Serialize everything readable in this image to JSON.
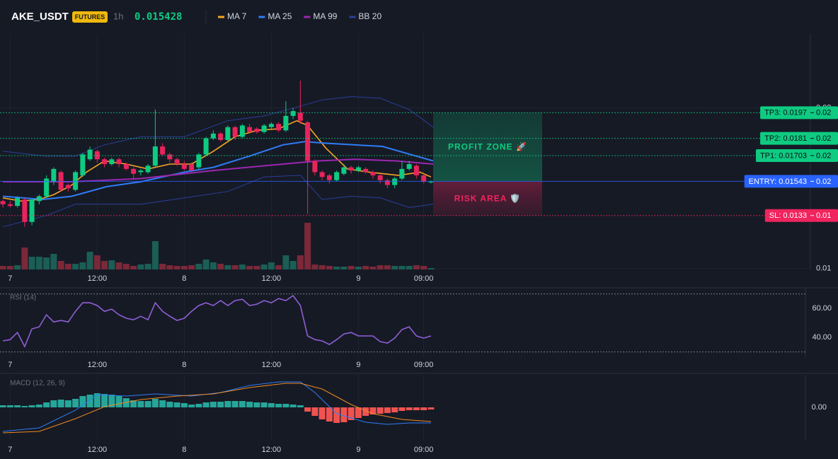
{
  "chart_data": {
    "type": "candlestick",
    "symbol": "AKE_USDT",
    "badge": "FUTURES",
    "interval": "1h",
    "last_price": 0.015428,
    "open": [
      0.0142,
      0.014,
      0.0139,
      0.0143,
      0.0129,
      0.0142,
      0.0145,
      0.0154,
      0.016,
      0.0152,
      0.0149,
      0.0158,
      0.0168,
      0.0173,
      0.0168,
      0.0165,
      0.0168,
      0.0165,
      0.0162,
      0.016,
      0.016,
      0.0164,
      0.0176,
      0.0171,
      0.0168,
      0.0165,
      0.0165,
      0.0163,
      0.0171,
      0.0181,
      0.0184,
      0.018,
      0.0188,
      0.0182,
      0.0188,
      0.0187,
      0.0185,
      0.0188,
      0.019,
      0.0186,
      0.0195,
      0.0197,
      0.0191,
      0.0167,
      0.016,
      0.0158,
      0.0155,
      0.0159,
      0.0163,
      0.0161,
      0.0162,
      0.016,
      0.0158,
      0.0155,
      0.0152,
      0.0156,
      0.0162,
      0.0164,
      0.0158,
      0.0154
    ],
    "high": [
      0.0143,
      0.0142,
      0.0145,
      0.0144,
      0.0143,
      0.0146,
      0.0158,
      0.0163,
      0.0161,
      0.0153,
      0.0161,
      0.0172,
      0.0176,
      0.0174,
      0.0169,
      0.0169,
      0.0169,
      0.0166,
      0.0163,
      0.0162,
      0.0165,
      0.0199,
      0.0178,
      0.0172,
      0.0169,
      0.0167,
      0.0166,
      0.0172,
      0.0182,
      0.0186,
      0.0185,
      0.0189,
      0.0189,
      0.019,
      0.019,
      0.0188,
      0.019,
      0.0191,
      0.0191,
      0.0204,
      0.02,
      0.0217,
      0.0192,
      0.0168,
      0.0161,
      0.0159,
      0.0161,
      0.0165,
      0.0164,
      0.0164,
      0.0163,
      0.0161,
      0.0159,
      0.0156,
      0.0157,
      0.0167,
      0.0167,
      0.0165,
      0.0159,
      0.0155
    ],
    "low": [
      0.0138,
      0.0138,
      0.0138,
      0.0126,
      0.0127,
      0.014,
      0.0144,
      0.0152,
      0.0148,
      0.0148,
      0.0148,
      0.0157,
      0.0167,
      0.0166,
      0.0163,
      0.0164,
      0.0163,
      0.0161,
      0.0156,
      0.0158,
      0.0159,
      0.0163,
      0.017,
      0.0166,
      0.0164,
      0.0161,
      0.016,
      0.0162,
      0.017,
      0.018,
      0.0179,
      0.0179,
      0.018,
      0.0181,
      0.0184,
      0.0184,
      0.0184,
      0.0187,
      0.0185,
      0.0185,
      0.0193,
      0.019,
      0.0134,
      0.0158,
      0.0155,
      0.0153,
      0.0154,
      0.0158,
      0.0159,
      0.016,
      0.0159,
      0.0156,
      0.0153,
      0.015,
      0.015,
      0.0155,
      0.0161,
      0.0156,
      0.0153,
      0.0153
    ],
    "close": [
      0.014,
      0.0139,
      0.0144,
      0.0129,
      0.0143,
      0.0145,
      0.0156,
      0.0162,
      0.0149,
      0.015,
      0.016,
      0.0171,
      0.0174,
      0.0168,
      0.0165,
      0.0168,
      0.0165,
      0.0162,
      0.0159,
      0.0161,
      0.0164,
      0.0176,
      0.0171,
      0.0168,
      0.0165,
      0.0162,
      0.0161,
      0.0171,
      0.0181,
      0.0184,
      0.018,
      0.0188,
      0.0182,
      0.0189,
      0.0185,
      0.0185,
      0.0189,
      0.019,
      0.0186,
      0.0195,
      0.0198,
      0.0192,
      0.0167,
      0.016,
      0.0157,
      0.0155,
      0.016,
      0.0163,
      0.0161,
      0.0163,
      0.016,
      0.0158,
      0.0155,
      0.0152,
      0.0156,
      0.0162,
      0.0165,
      0.0158,
      0.0154,
      0.0154
    ],
    "volume": [
      5,
      5,
      6,
      31,
      18,
      18,
      17,
      22,
      12,
      8,
      8,
      10,
      25,
      20,
      12,
      13,
      10,
      8,
      5,
      7,
      8,
      40,
      8,
      6,
      5,
      5,
      6,
      8,
      14,
      10,
      8,
      6,
      6,
      7,
      5,
      5,
      7,
      10,
      6,
      20,
      12,
      20,
      66,
      7,
      6,
      5,
      4,
      4,
      5,
      4,
      5,
      4,
      6,
      6,
      5,
      5,
      5,
      6,
      5,
      2
    ],
    "up_color": "#0ecb81",
    "down_color": "#e8245c",
    "xlim": [
      -0.4,
      111.3
    ],
    "xticks": [
      {
        "value": 1,
        "label": "7"
      },
      {
        "value": 13,
        "label": "12:00"
      },
      {
        "value": 25,
        "label": "8"
      },
      {
        "value": 37,
        "label": "12:00"
      },
      {
        "value": 49,
        "label": "9"
      },
      {
        "value": 58,
        "label": "09:00"
      }
    ],
    "ylim": [
      0.0099,
      0.0246
    ],
    "yticks": [
      0.01,
      0.02
    ],
    "overlays": [
      {
        "name": "MA 7",
        "color": "#f5a623",
        "x": [
          0,
          2.5,
          5,
          7,
          9.5,
          11.5,
          14,
          17,
          20,
          23,
          26,
          29,
          32,
          35,
          38,
          40.5,
          42,
          44.5,
          47.5,
          50.5,
          54.5,
          57.5,
          59
        ],
        "values": [
          0.0144,
          0.0142,
          0.0143,
          0.0146,
          0.0152,
          0.016,
          0.0167,
          0.0165,
          0.0162,
          0.0165,
          0.0165,
          0.0173,
          0.0182,
          0.0186,
          0.0187,
          0.0192,
          0.0189,
          0.0175,
          0.0162,
          0.016,
          0.0158,
          0.016,
          0.0157
        ]
      },
      {
        "name": "MA 25",
        "color": "#2f7cf6",
        "x": [
          0,
          5.5,
          9.5,
          14.3,
          19,
          25,
          29,
          34,
          38.6,
          41.6,
          44.5,
          48.4,
          52.3,
          56.2,
          59.3
        ],
        "values": [
          0.0145,
          0.0143,
          0.0145,
          0.0151,
          0.0154,
          0.016,
          0.0163,
          0.017,
          0.0177,
          0.0179,
          0.0178,
          0.0177,
          0.0176,
          0.0171,
          0.0167
        ]
      },
      {
        "name": "MA 99",
        "color": "#9c27b0",
        "x": [
          0,
          9.5,
          19,
          29,
          38.6,
          43.5,
          48.4,
          54.2,
          59.3
        ],
        "values": [
          0.0154,
          0.0154,
          0.0156,
          0.0161,
          0.0165,
          0.0167,
          0.0168,
          0.0167,
          0.0165
        ]
      }
    ],
    "bands": [
      {
        "name": "BB 20",
        "color": "#2a3f9a",
        "x": [
          0,
          6,
          10,
          14,
          19,
          25,
          31,
          36,
          41,
          44,
          48,
          52,
          56,
          59.3
        ],
        "upper": [
          0.0173,
          0.017,
          0.017,
          0.0177,
          0.0182,
          0.0182,
          0.0192,
          0.0195,
          0.0201,
          0.0205,
          0.0207,
          0.0206,
          0.0199,
          0.0188
        ],
        "lower": [
          0.0126,
          0.0133,
          0.014,
          0.014,
          0.014,
          0.0144,
          0.0148,
          0.0157,
          0.0158,
          0.0143,
          0.0145,
          0.0144,
          0.0138,
          0.014
        ]
      }
    ],
    "levels": [
      {
        "label": "TP3: 0.0197",
        "value": 0.0197,
        "axis_label": "0.02",
        "color": "#0ecb81",
        "style": "dotted"
      },
      {
        "label": "TP2: 0.0181",
        "value": 0.0181,
        "axis_label": "0.02",
        "color": "#0ecb81",
        "style": "dotted"
      },
      {
        "label": "TP1: 0.01703",
        "value": 0.01703,
        "axis_label": "0.02",
        "color": "#0ecb81",
        "style": "dotted"
      },
      {
        "label": "ENTRY: 0.01543",
        "value": 0.01543,
        "axis_label": "0.02",
        "color": "#2962ff",
        "style": "solid"
      },
      {
        "label": "SL: 0.0133",
        "value": 0.0133,
        "axis_label": "0.01",
        "color": "#f0245e",
        "style": "dotted"
      }
    ],
    "zones": [
      {
        "label": "PROFIT ZONE 🚀",
        "top": 0.0197,
        "bottom": 0.01543,
        "color": "#0ecb81"
      },
      {
        "label": "RISK AREA 🛡️",
        "top": 0.01543,
        "bottom": 0.0133,
        "color": "#f0245e"
      }
    ],
    "rsi": {
      "title": "RSI (14)",
      "color": "#8e5fd6",
      "ylim": [
        25.9,
        73.7
      ],
      "yticks": [
        {
          "value": 60,
          "label": "60.00"
        },
        {
          "value": 40,
          "label": "40.00"
        }
      ],
      "bands": [
        70,
        30
      ],
      "values": [
        37.6,
        38.5,
        43.4,
        33.7,
        45.9,
        47.3,
        55.6,
        50.7,
        51.7,
        50.7,
        58.0,
        63.9,
        63.9,
        62.0,
        58.0,
        59.5,
        55.6,
        53.2,
        52.2,
        54.6,
        52.2,
        63.9,
        58.0,
        54.6,
        51.7,
        53.2,
        58.0,
        62.0,
        63.9,
        62.0,
        65.4,
        62.0,
        65.4,
        66.3,
        62.0,
        62.9,
        65.4,
        63.9,
        66.8,
        65.4,
        68.8,
        62.0,
        41.0,
        38.5,
        37.6,
        35.1,
        38.5,
        42.4,
        43.4,
        41.0,
        41.0,
        41.0,
        37.1,
        36.1,
        39.5,
        45.4,
        47.3,
        41.0,
        39.5,
        41.0
      ]
    },
    "macd": {
      "title": "MACD (12, 26, 9)",
      "ylim": [
        -0.00046,
        0.00046
      ],
      "yticks": [
        {
          "value": 0,
          "label": "0.00"
        }
      ],
      "up_color": "#26a69a",
      "down_color": "#ef5350",
      "histogram": [
        3e-05,
        3e-05,
        3e-05,
        2e-05,
        3e-05,
        4e-05,
        7e-05,
        0.0001,
        0.00011,
        0.0001,
        0.00012,
        0.00016,
        0.00018,
        0.0002,
        0.00019,
        0.00018,
        0.00016,
        0.00013,
        0.0001,
        9e-05,
        9e-05,
        0.00012,
        0.0001,
        8e-05,
        7e-05,
        6e-05,
        4e-05,
        5e-05,
        7e-05,
        8e-05,
        8e-05,
        9e-05,
        9e-05,
        9e-05,
        8e-05,
        7e-05,
        7e-05,
        6e-05,
        5e-05,
        5e-05,
        4e-05,
        3e-05,
        -6e-05,
        -0.00012,
        -0.00017,
        -0.0002,
        -0.00022,
        -0.00021,
        -0.00018,
        -0.00015,
        -0.00012,
        -0.0001,
        -9e-05,
        -8e-05,
        -7e-05,
        -5e-05,
        -4e-05,
        -4e-05,
        -4e-05,
        -3e-05
      ],
      "lines": [
        {
          "color": "#2f7cf6",
          "x": [
            0,
            5,
            10,
            13,
            17,
            21,
            26,
            30,
            34,
            38,
            41,
            43,
            46,
            50,
            53,
            56,
            59
          ],
          "values": [
            -0.00034,
            -0.00029,
            -4e-05,
            0.00018,
            0.00016,
            0.00019,
            0.00016,
            0.00021,
            0.00031,
            0.00036,
            0.00036,
            0.00021,
            -9e-05,
            -0.00021,
            -0.00024,
            -0.00022,
            -0.00022
          ]
        },
        {
          "color": "#f08a24",
          "x": [
            0,
            5,
            10,
            14,
            19,
            24,
            29,
            34,
            39,
            41,
            44,
            48,
            51,
            55,
            59
          ],
          "values": [
            -0.00036,
            -0.00034,
            -0.00016,
            1e-05,
            0.00011,
            0.00016,
            0.00019,
            0.00028,
            0.00034,
            0.00034,
            0.00026,
            4e-05,
            -9e-05,
            -0.00017,
            -0.0002
          ]
        }
      ]
    }
  }
}
